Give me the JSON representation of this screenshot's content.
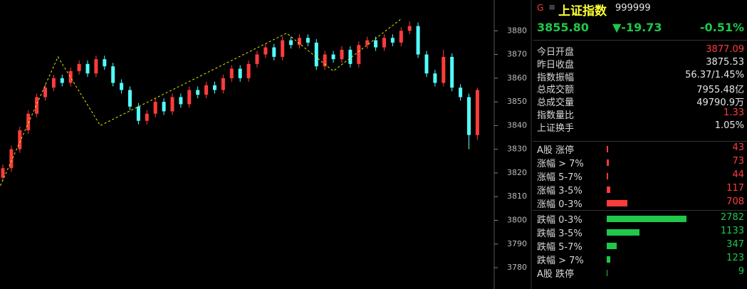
{
  "chart_data": {
    "type": "candlestick",
    "open": [
      3818,
      3822,
      3830,
      3838,
      3845,
      3852,
      3856,
      3860,
      3858,
      3863,
      3866,
      3862,
      3868,
      3865,
      3858,
      3855,
      3848,
      3842,
      3845,
      3850,
      3846,
      3852,
      3849,
      3855,
      3853,
      3857,
      3855,
      3860,
      3864,
      3860,
      3866,
      3870,
      3873,
      3869,
      3876,
      3874,
      3877,
      3875,
      3865,
      3870,
      3868,
      3872,
      3866,
      3874,
      3876,
      3873,
      3877,
      3875,
      3880,
      3882,
      3870,
      3862,
      3858,
      3869,
      3856,
      3852,
      3836
    ],
    "high": [
      3823.5,
      3831.5,
      3839.5,
      3846.5,
      3853.5,
      3857.5,
      3861.5,
      3861.5,
      3864.5,
      3867.5,
      3867.5,
      3869.5,
      3869.5,
      3866.5,
      3859.5,
      3856.5,
      3849.5,
      3846.5,
      3851.5,
      3851.5,
      3853.5,
      3853.5,
      3856.5,
      3856.5,
      3858.5,
      3858.5,
      3861.5,
      3865.5,
      3865.5,
      3867.5,
      3871.5,
      3874.5,
      3874.5,
      3877.5,
      3877.5,
      3878.5,
      3878.5,
      3876.5,
      3871.5,
      3871.5,
      3873.5,
      3873.5,
      3875.5,
      3877.5,
      3877.5,
      3878.5,
      3878.5,
      3881.5,
      3884,
      3883.5,
      3871.5,
      3863.5,
      3872,
      3870.5,
      3857.5,
      3853.5,
      3856
    ],
    "low": [
      3816.5,
      3820.5,
      3828.5,
      3836.5,
      3843.5,
      3850.5,
      3854.5,
      3856.5,
      3856.5,
      3861.5,
      3860.5,
      3860.5,
      3863.5,
      3856.5,
      3853.5,
      3846.5,
      3840.5,
      3840.5,
      3843.5,
      3844.5,
      3844.5,
      3847.5,
      3847.5,
      3851.5,
      3851.5,
      3853.5,
      3853.5,
      3858.5,
      3858.5,
      3858.5,
      3864.5,
      3868.5,
      3867.5,
      3867.5,
      3872.5,
      3872.5,
      3873.5,
      3863.5,
      3863.5,
      3866.5,
      3866.5,
      3864.5,
      3864.5,
      3872.5,
      3871.5,
      3871.5,
      3873.5,
      3873.5,
      3878.5,
      3868.5,
      3860.5,
      3856.5,
      3856.5,
      3854.5,
      3850.5,
      3830,
      3834
    ],
    "close": [
      3822,
      3830,
      3838,
      3845,
      3852,
      3856,
      3860,
      3858,
      3863,
      3866,
      3862,
      3868,
      3865,
      3858,
      3855,
      3848,
      3842,
      3845,
      3850,
      3846,
      3852,
      3849,
      3855,
      3853,
      3857,
      3855,
      3860,
      3864,
      3860,
      3866,
      3870,
      3873,
      3869,
      3876,
      3874,
      3877,
      3875,
      3865,
      3870,
      3868,
      3872,
      3866,
      3874,
      3876,
      3873,
      3877,
      3875,
      3880,
      3882,
      3870,
      3862,
      3858,
      3869,
      3856,
      3852,
      3836,
      3855
    ],
    "up_color": "#ff3c3c",
    "down_color": "#54fcfc",
    "ylim": [
      3771,
      3893
    ],
    "yticks": [
      3780,
      3790,
      3800,
      3810,
      3820,
      3830,
      3840,
      3850,
      3860,
      3870,
      3880
    ],
    "zigzag": {
      "x": [
        -0.5,
        6.5,
        11.5,
        33.5,
        39,
        47
      ],
      "values": [
        3813,
        3869,
        3840,
        3879,
        3863,
        3885
      ],
      "color": "#e8e800"
    }
  },
  "panel": {
    "header": {
      "marker": "G",
      "menu": "≡",
      "name": "上证指数",
      "code": "999999"
    },
    "quote": {
      "price": "3855.80",
      "change": "▼-19.73",
      "percent": "-0.51%"
    },
    "stats": [
      {
        "label": "今日开盘",
        "value": "3877.09",
        "color": "#ff3c3c"
      },
      {
        "label": "昨日收盘",
        "value": "3875.53",
        "color": "#e6e6e6"
      },
      {
        "label": "指数振幅",
        "value": "56.37/1.45%",
        "color": "#e6e6e6"
      },
      {
        "label": "总成交额",
        "value": "7955.48亿",
        "color": "#e6e6e6"
      },
      {
        "label": "总成交量",
        "value": "49790.9万",
        "color": "#e6e6e6"
      },
      {
        "label": "指数量比",
        "value": "1.33",
        "color": "#ff3c3c"
      },
      {
        "label": "上证换手",
        "value": "1.05%",
        "color": "#e6e6e6"
      }
    ],
    "breadth": [
      {
        "label": "A股 涨停",
        "count": 43,
        "color": "#ff3c3c"
      },
      {
        "label": "涨幅 > 7%",
        "count": 73,
        "color": "#ff3c3c"
      },
      {
        "label": "涨幅 5-7%",
        "count": 44,
        "color": "#ff3c3c"
      },
      {
        "label": "涨幅 3-5%",
        "count": 117,
        "color": "#ff3c3c"
      },
      {
        "label": "涨幅 0-3%",
        "count": 708,
        "color": "#ff3c3c"
      },
      {
        "label": "跌幅 0-3%",
        "count": 2782,
        "color": "#1ec84a"
      },
      {
        "label": "跌幅 3-5%",
        "count": 1133,
        "color": "#1ec84a"
      },
      {
        "label": "跌幅 5-7%",
        "count": 347,
        "color": "#1ec84a"
      },
      {
        "label": "跌幅 > 7%",
        "count": 123,
        "color": "#1ec84a"
      },
      {
        "label": "A股 跌停",
        "count": 9,
        "color": "#1ec84a"
      }
    ]
  }
}
